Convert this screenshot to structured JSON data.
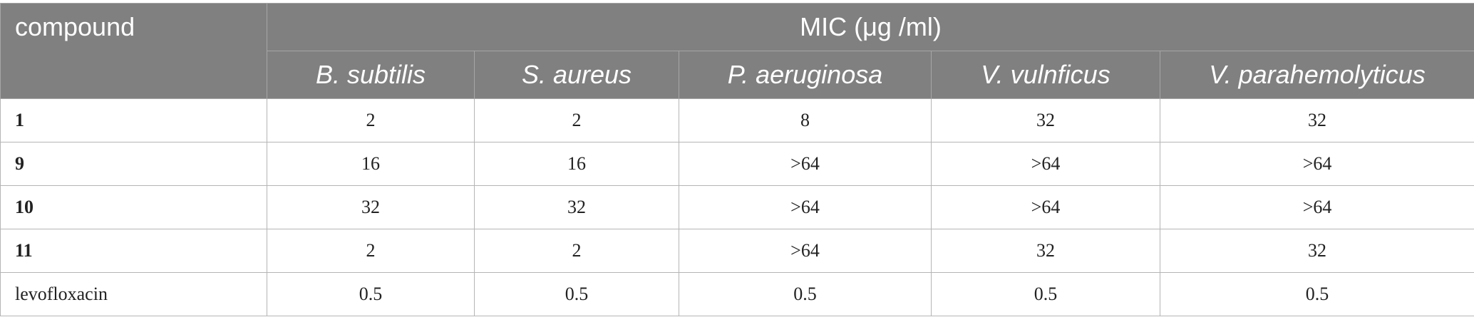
{
  "table": {
    "compound_header": "compound",
    "group_header": "MIC (μg /ml)",
    "species": [
      "B. subtilis",
      "S. aureus",
      "P. aeruginosa",
      "V. vulnficus",
      "V. parahemolyticus"
    ],
    "rows": [
      {
        "compound": "1",
        "values": [
          "2",
          "2",
          "8",
          "32",
          "32"
        ]
      },
      {
        "compound": "9",
        "values": [
          "16",
          "16",
          ">64",
          ">64",
          ">64"
        ]
      },
      {
        "compound": "10",
        "values": [
          "32",
          "32",
          ">64",
          ">64",
          ">64"
        ]
      },
      {
        "compound": "11",
        "values": [
          "2",
          "2",
          ">64",
          "32",
          "32"
        ]
      },
      {
        "compound": "levofloxacin",
        "values": [
          "0.5",
          "0.5",
          "0.5",
          "0.5",
          "0.5"
        ]
      }
    ]
  }
}
